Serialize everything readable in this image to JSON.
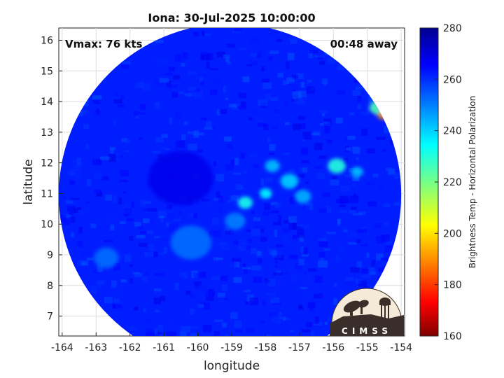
{
  "chart_data": {
    "type": "heatmap",
    "title": "Iona: 30-Jul-2025 10:00:00",
    "xlabel": "longitude",
    "ylabel": "latitude",
    "xlim": [
      -164.1,
      -153.9
    ],
    "ylim": [
      6.35,
      16.4
    ],
    "xticks": [
      "-164",
      "-163",
      "-162",
      "-161",
      "-160",
      "-159",
      "-158",
      "-157",
      "-156",
      "-155",
      "-154"
    ],
    "yticks": [
      "7",
      "8",
      "9",
      "10",
      "11",
      "12",
      "13",
      "14",
      "15",
      "16"
    ],
    "grid": true,
    "swath_center": [
      -159.05,
      11.05
    ],
    "swath_radius_deg": 5.0,
    "field": "Brightness Temp - Horizontal Polarization",
    "colorbar": {
      "label": "Brightness Temp - Horizontal Polarization",
      "min": 160,
      "max": 280,
      "ticks": [
        "160",
        "180",
        "200",
        "220",
        "240",
        "260",
        "280"
      ],
      "colormap": "jet"
    },
    "background_value": 262,
    "features": [
      {
        "lon": -158.6,
        "lat": 10.7,
        "value": 232,
        "spread": 0.18
      },
      {
        "lon": -158.0,
        "lat": 11.0,
        "value": 235,
        "spread": 0.15
      },
      {
        "lon": -157.3,
        "lat": 11.4,
        "value": 240,
        "spread": 0.22
      },
      {
        "lon": -157.8,
        "lat": 11.9,
        "value": 242,
        "spread": 0.18
      },
      {
        "lon": -156.9,
        "lat": 10.9,
        "value": 244,
        "spread": 0.2
      },
      {
        "lon": -155.9,
        "lat": 11.9,
        "value": 230,
        "spread": 0.22
      },
      {
        "lon": -155.3,
        "lat": 11.7,
        "value": 242,
        "spread": 0.15
      },
      {
        "lon": -158.9,
        "lat": 10.1,
        "value": 250,
        "spread": 0.25
      },
      {
        "lon": -160.2,
        "lat": 9.4,
        "value": 252,
        "spread": 0.5
      },
      {
        "lon": -162.7,
        "lat": 8.9,
        "value": 252,
        "spread": 0.3
      },
      {
        "lon": -154.55,
        "lat": 13.55,
        "value": 190,
        "spread": 0.12
      },
      {
        "lon": -154.7,
        "lat": 13.8,
        "value": 225,
        "spread": 0.2
      },
      {
        "lon": -160.5,
        "lat": 11.5,
        "value": 268,
        "spread": 0.8
      }
    ],
    "annotations": {
      "vmax": "Vmax: 76 kts",
      "away": "00:48 away"
    },
    "logo_text": "CIMSS"
  },
  "colors": {
    "background": "#ffffff",
    "grid": "#dcdcdc",
    "axis": "#222222",
    "logo_fill": "#3a2e2a",
    "logo_sky": "#f4ead7"
  }
}
